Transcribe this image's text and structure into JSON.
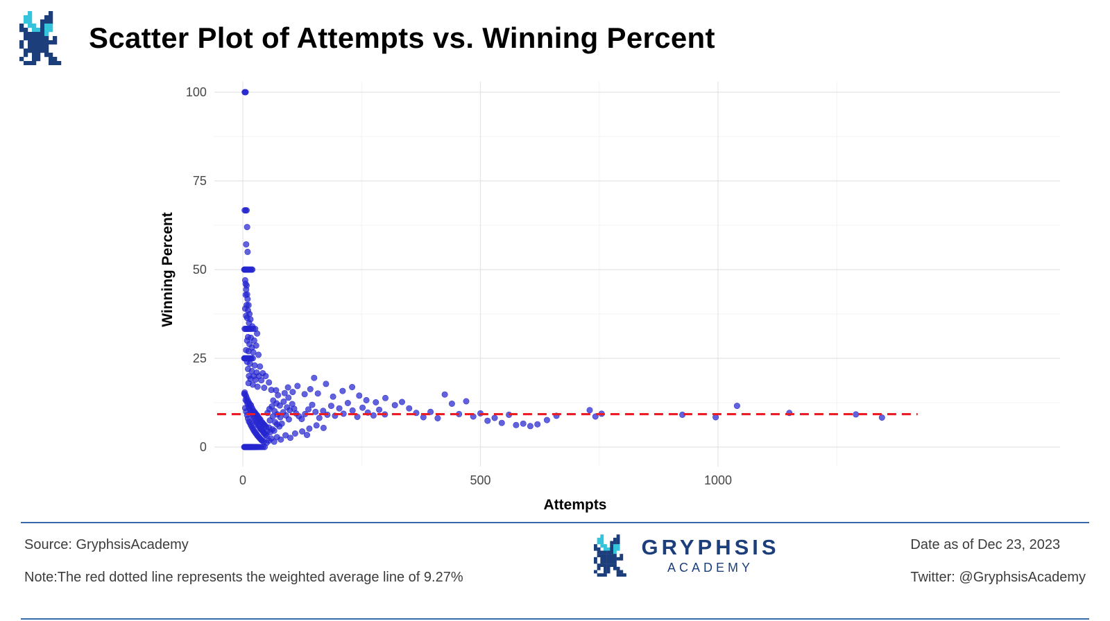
{
  "header": {
    "title": "Scatter Plot of Attempts vs. Winning Percent"
  },
  "footer": {
    "source": "Source: GryphsisAcademy",
    "note": "Note:The red dotted line represents the weighted average line of 9.27%",
    "brand_name": "GRYPHSIS",
    "brand_sub": "ACADEMY",
    "date": "Date as of Dec 23, 2023",
    "twitter": "Twitter: @GryphsisAcademy"
  },
  "colors": {
    "point": "#2626d0",
    "refline": "#ec1c24",
    "divider": "#326ba8",
    "navy": "#1c3e7b",
    "cyan": "#35c4dc",
    "grid_major": "#e4e4e4",
    "grid_minor": "#f3f3f3",
    "tick_text": "#474747"
  },
  "chart_data": {
    "type": "scatter",
    "title": "Scatter Plot of Attempts vs. Winning Percent",
    "xlabel": "Attempts",
    "ylabel": "Winning Percent",
    "xlim": [
      -60,
      1720
    ],
    "ylim": [
      -5.5,
      103
    ],
    "x_ticks": [
      0,
      500,
      1000
    ],
    "y_ticks": [
      0,
      25,
      50,
      75,
      100
    ],
    "x_minor": [
      250,
      750,
      1250
    ],
    "y_minor": [
      12.5,
      37.5,
      62.5,
      87.5
    ],
    "grid": true,
    "legend": false,
    "refline": {
      "y": 9.27,
      "style": "dashed",
      "color": "#ec1c24",
      "x_end": 1420,
      "meaning": "weighted average line of 9.27%"
    },
    "points": [
      [
        4,
        100
      ],
      [
        5,
        100
      ],
      [
        6,
        100
      ],
      [
        4,
        66.7
      ],
      [
        6,
        66.7
      ],
      [
        8,
        66.7
      ],
      [
        9,
        62
      ],
      [
        7,
        57.1
      ],
      [
        10,
        55
      ],
      [
        3,
        50
      ],
      [
        4,
        50
      ],
      [
        5,
        50
      ],
      [
        6,
        50
      ],
      [
        7,
        50
      ],
      [
        8,
        50
      ],
      [
        10,
        50
      ],
      [
        12,
        50
      ],
      [
        14,
        50
      ],
      [
        16,
        50
      ],
      [
        18,
        50
      ],
      [
        20,
        50
      ],
      [
        5,
        47
      ],
      [
        6,
        46
      ],
      [
        8,
        45.5
      ],
      [
        7,
        44.4
      ],
      [
        9,
        43
      ],
      [
        6,
        42.9
      ],
      [
        10,
        41.7
      ],
      [
        8,
        40
      ],
      [
        12,
        40
      ],
      [
        5,
        39
      ],
      [
        11,
        38.5
      ],
      [
        14,
        37.5
      ],
      [
        7,
        37
      ],
      [
        9,
        36.4
      ],
      [
        16,
        36
      ],
      [
        4,
        33.3
      ],
      [
        6,
        33.3
      ],
      [
        8,
        33.3
      ],
      [
        10,
        33.3
      ],
      [
        12,
        33.3
      ],
      [
        15,
        33.3
      ],
      [
        18,
        33.3
      ],
      [
        22,
        33.3
      ],
      [
        26,
        33.3
      ],
      [
        13,
        35
      ],
      [
        20,
        34
      ],
      [
        30,
        32
      ],
      [
        11,
        31
      ],
      [
        17,
        30.8
      ],
      [
        24,
        30
      ],
      [
        9,
        30
      ],
      [
        14,
        29
      ],
      [
        28,
        28.6
      ],
      [
        19,
        28
      ],
      [
        7,
        27.3
      ],
      [
        12,
        27
      ],
      [
        22,
        26.7
      ],
      [
        33,
        26
      ],
      [
        3,
        25
      ],
      [
        4,
        25
      ],
      [
        5,
        25
      ],
      [
        6,
        25
      ],
      [
        7,
        25
      ],
      [
        8,
        25
      ],
      [
        10,
        25
      ],
      [
        12,
        25
      ],
      [
        14,
        25
      ],
      [
        16,
        25
      ],
      [
        18,
        25
      ],
      [
        21,
        25
      ],
      [
        9,
        24
      ],
      [
        15,
        23.5
      ],
      [
        25,
        23
      ],
      [
        36,
        22.7
      ],
      [
        11,
        22
      ],
      [
        19,
        21.4
      ],
      [
        29,
        21
      ],
      [
        42,
        20.8
      ],
      [
        13,
        20
      ],
      [
        23,
        20
      ],
      [
        34,
        20
      ],
      [
        48,
        20
      ],
      [
        16,
        19.2
      ],
      [
        27,
        19
      ],
      [
        39,
        18.8
      ],
      [
        55,
        18.2
      ],
      [
        12,
        18
      ],
      [
        21,
        17.6
      ],
      [
        31,
        17
      ],
      [
        45,
        16.7
      ],
      [
        60,
        16.1
      ],
      [
        70,
        16
      ],
      [
        3,
        15
      ],
      [
        5,
        14.8
      ],
      [
        7,
        14.3
      ],
      [
        9,
        13.6
      ],
      [
        11,
        13
      ],
      [
        13,
        12.5
      ],
      [
        15,
        12
      ],
      [
        17,
        11.8
      ],
      [
        19,
        11.1
      ],
      [
        21,
        10.5
      ],
      [
        23,
        10
      ],
      [
        25,
        9.8
      ],
      [
        27,
        9.4
      ],
      [
        29,
        9.1
      ],
      [
        31,
        8.8
      ],
      [
        33,
        8.3
      ],
      [
        35,
        8
      ],
      [
        37,
        7.7
      ],
      [
        39,
        7.1
      ],
      [
        41,
        6.9
      ],
      [
        43,
        6.5
      ],
      [
        45,
        6.3
      ],
      [
        47,
        6
      ],
      [
        49,
        5.6
      ],
      [
        4,
        15.4
      ],
      [
        6,
        13.3
      ],
      [
        8,
        12.9
      ],
      [
        10,
        12.2
      ],
      [
        12,
        11.5
      ],
      [
        14,
        10.9
      ],
      [
        16,
        10.3
      ],
      [
        18,
        9.7
      ],
      [
        20,
        9.3
      ],
      [
        22,
        8.7
      ],
      [
        24,
        8.1
      ],
      [
        26,
        7.5
      ],
      [
        28,
        7
      ],
      [
        30,
        6.7
      ],
      [
        32,
        6.1
      ],
      [
        34,
        5.9
      ],
      [
        36,
        5.3
      ],
      [
        38,
        5
      ],
      [
        40,
        4.8
      ],
      [
        42,
        4.4
      ],
      [
        44,
        4
      ],
      [
        46,
        3.8
      ],
      [
        48,
        3.4
      ],
      [
        50,
        3.1
      ],
      [
        5,
        11
      ],
      [
        7,
        10
      ],
      [
        9,
        9
      ],
      [
        11,
        8
      ],
      [
        13,
        7.2
      ],
      [
        15,
        6.8
      ],
      [
        17,
        6.2
      ],
      [
        19,
        5.7
      ],
      [
        21,
        5.2
      ],
      [
        23,
        4.7
      ],
      [
        25,
        4.3
      ],
      [
        27,
        3.9
      ],
      [
        29,
        3.6
      ],
      [
        31,
        3.2
      ],
      [
        33,
        2.9
      ],
      [
        35,
        2.6
      ],
      [
        37,
        2.3
      ],
      [
        39,
        2
      ],
      [
        41,
        1.8
      ],
      [
        44,
        1.5
      ],
      [
        52,
        4.5
      ],
      [
        55,
        5.5
      ],
      [
        58,
        4.2
      ],
      [
        62,
        5
      ],
      [
        66,
        4.6
      ],
      [
        57,
        7.5
      ],
      [
        63,
        8.6
      ],
      [
        68,
        7
      ],
      [
        72,
        6.4
      ],
      [
        77,
        5.8
      ],
      [
        82,
        6.6
      ],
      [
        52,
        9.6
      ],
      [
        56,
        10.7
      ],
      [
        61,
        11.4
      ],
      [
        67,
        10.1
      ],
      [
        73,
        9.2
      ],
      [
        79,
        8.4
      ],
      [
        85,
        9.8
      ],
      [
        91,
        8.9
      ],
      [
        97,
        7.8
      ],
      [
        64,
        13.1
      ],
      [
        71,
        12.3
      ],
      [
        78,
        11.7
      ],
      [
        86,
        12.8
      ],
      [
        93,
        11.2
      ],
      [
        99,
        10.4
      ],
      [
        74,
        14.6
      ],
      [
        88,
        15.2
      ],
      [
        96,
        13.9
      ],
      [
        104,
        12.1
      ],
      [
        108,
        10.8
      ],
      [
        112,
        9.5
      ],
      [
        118,
        8.7
      ],
      [
        124,
        7.9
      ],
      [
        131,
        9.3
      ],
      [
        138,
        10.6
      ],
      [
        146,
        11.9
      ],
      [
        153,
        9.9
      ],
      [
        161,
        8.2
      ],
      [
        169,
        10.2
      ],
      [
        178,
        9.1
      ],
      [
        186,
        11.6
      ],
      [
        194,
        8.8
      ],
      [
        203,
        10.9
      ],
      [
        212,
        9.4
      ],
      [
        221,
        12.4
      ],
      [
        231,
        10.3
      ],
      [
        241,
        8.5
      ],
      [
        252,
        11.1
      ],
      [
        263,
        9.7
      ],
      [
        275,
        8.9
      ],
      [
        287,
        10.5
      ],
      [
        299,
        9.2
      ],
      [
        3,
        0
      ],
      [
        4,
        0
      ],
      [
        5,
        0
      ],
      [
        6,
        0
      ],
      [
        7,
        0
      ],
      [
        8,
        0
      ],
      [
        9,
        0
      ],
      [
        10,
        0
      ],
      [
        11,
        0
      ],
      [
        12,
        0
      ],
      [
        13,
        0
      ],
      [
        14,
        0
      ],
      [
        15,
        0
      ],
      [
        16,
        0
      ],
      [
        17,
        0
      ],
      [
        18,
        0
      ],
      [
        20,
        0
      ],
      [
        22,
        0
      ],
      [
        24,
        0
      ],
      [
        26,
        0
      ],
      [
        28,
        0
      ],
      [
        31,
        0
      ],
      [
        34,
        0
      ],
      [
        38,
        0
      ],
      [
        42,
        0
      ],
      [
        46,
        0
      ],
      [
        50,
        1.2
      ],
      [
        55,
        1.8
      ],
      [
        60,
        2.4
      ],
      [
        66,
        1.5
      ],
      [
        72,
        2.8
      ],
      [
        80,
        2.1
      ],
      [
        90,
        3.3
      ],
      [
        100,
        2.6
      ],
      [
        110,
        3.8
      ],
      [
        125,
        4.4
      ],
      [
        140,
        5.2
      ],
      [
        135,
        3.4
      ],
      [
        155,
        6.1
      ],
      [
        170,
        5.4
      ],
      [
        95,
        16.8
      ],
      [
        105,
        15.5
      ],
      [
        115,
        17.2
      ],
      [
        130,
        14.9
      ],
      [
        142,
        16.3
      ],
      [
        158,
        15.1
      ],
      [
        175,
        17.8
      ],
      [
        190,
        14.2
      ],
      [
        150,
        19.5
      ],
      [
        210,
        15.8
      ],
      [
        230,
        16.9
      ],
      [
        245,
        14.5
      ],
      [
        260,
        13.2
      ],
      [
        280,
        12.6
      ],
      [
        300,
        13.8
      ],
      [
        320,
        11.8
      ],
      [
        335,
        12.7
      ],
      [
        350,
        10.9
      ],
      [
        365,
        9.6
      ],
      [
        380,
        8.4
      ],
      [
        395,
        9.9
      ],
      [
        410,
        8.1
      ],
      [
        425,
        14.8
      ],
      [
        440,
        12.2
      ],
      [
        455,
        9.3
      ],
      [
        470,
        12.9
      ],
      [
        485,
        8.6
      ],
      [
        500,
        9.5
      ],
      [
        515,
        7.4
      ],
      [
        530,
        8.2
      ],
      [
        545,
        6.8
      ],
      [
        560,
        9.1
      ],
      [
        575,
        6.2
      ],
      [
        590,
        6.6
      ],
      [
        605,
        5.9
      ],
      [
        620,
        6.4
      ],
      [
        640,
        7.6
      ],
      [
        660,
        8.8
      ],
      [
        730,
        10.4
      ],
      [
        742,
        8.6
      ],
      [
        755,
        9.4
      ],
      [
        925,
        9.1
      ],
      [
        995,
        8.4
      ],
      [
        1040,
        11.6
      ],
      [
        1150,
        9.6
      ],
      [
        1290,
        9.2
      ],
      [
        1345,
        8.3
      ]
    ]
  }
}
